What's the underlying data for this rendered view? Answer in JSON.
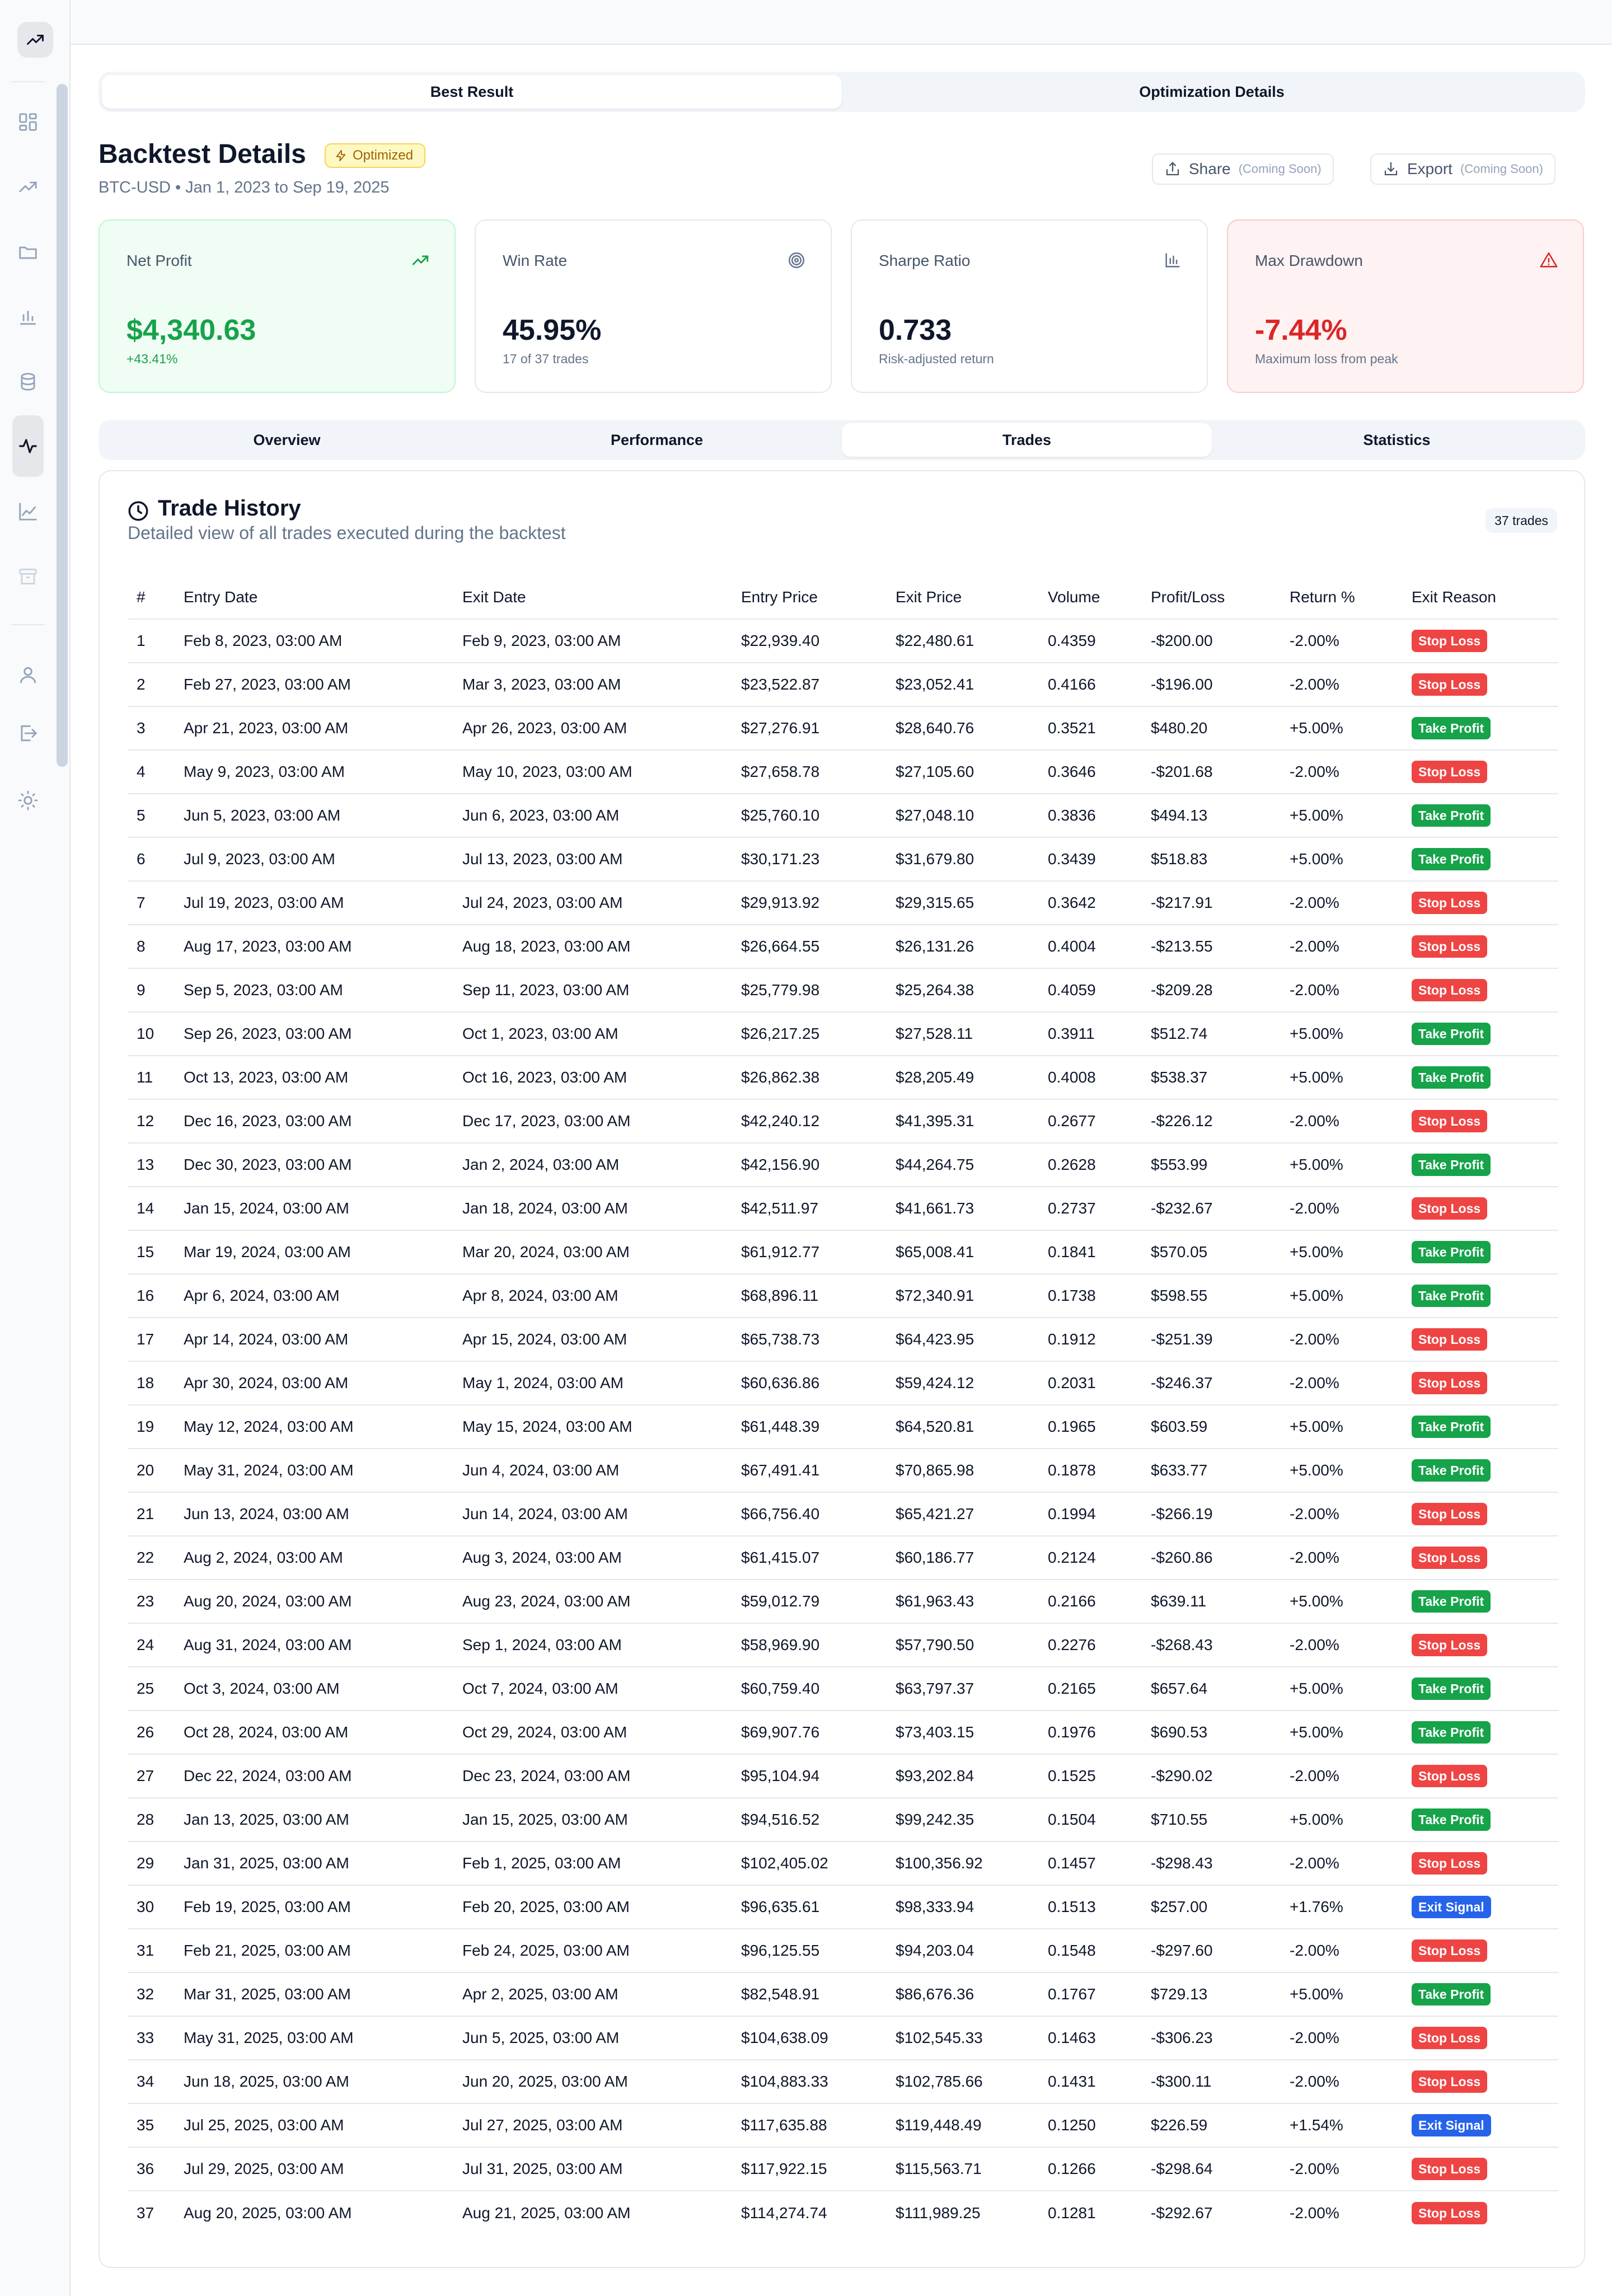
{
  "top_segments": [
    {
      "label": "Best Result",
      "active": true
    },
    {
      "label": "Optimization Details",
      "active": false
    }
  ],
  "header": {
    "title": "Backtest Details",
    "badge": "Optimized",
    "subtitle": "BTC-USD • Jan 1, 2023 to Sep 19, 2025",
    "share": {
      "label": "Share",
      "note": "(Coming Soon)"
    },
    "export": {
      "label": "Export",
      "note": "(Coming Soon)"
    }
  },
  "metrics": [
    {
      "label": "Net Profit",
      "value": "$4,340.63",
      "sub": "+43.41%",
      "icon": "trending-up-icon",
      "tone": "green"
    },
    {
      "label": "Win Rate",
      "value": "45.95%",
      "sub": "17 of 37 trades",
      "icon": "target-icon",
      "tone": "neutral"
    },
    {
      "label": "Sharpe Ratio",
      "value": "0.733",
      "sub": "Risk-adjusted return",
      "icon": "bar-chart-icon",
      "tone": "neutral"
    },
    {
      "label": "Max Drawdown",
      "value": "-7.44%",
      "sub": "Maximum loss from peak",
      "icon": "alert-triangle-icon",
      "tone": "red"
    }
  ],
  "tabs": [
    {
      "label": "Overview",
      "active": false
    },
    {
      "label": "Performance",
      "active": false
    },
    {
      "label": "Trades",
      "active": true
    },
    {
      "label": "Statistics",
      "active": false
    }
  ],
  "trade_history": {
    "title": "Trade History",
    "description": "Detailed view of all trades executed during the backtest",
    "count_badge": "37 trades",
    "columns": [
      "#",
      "Entry Date",
      "Exit Date",
      "Entry Price",
      "Exit Price",
      "Volume",
      "Profit/Loss",
      "Return %",
      "Exit Reason"
    ],
    "rows": [
      [
        "1",
        "Feb 8, 2023, 03:00 AM",
        "Feb 9, 2023, 03:00 AM",
        "$22,939.40",
        "$22,480.61",
        "0.4359",
        "-$200.00",
        "-2.00%",
        "Stop Loss"
      ],
      [
        "2",
        "Feb 27, 2023, 03:00 AM",
        "Mar 3, 2023, 03:00 AM",
        "$23,522.87",
        "$23,052.41",
        "0.4166",
        "-$196.00",
        "-2.00%",
        "Stop Loss"
      ],
      [
        "3",
        "Apr 21, 2023, 03:00 AM",
        "Apr 26, 2023, 03:00 AM",
        "$27,276.91",
        "$28,640.76",
        "0.3521",
        "$480.20",
        "+5.00%",
        "Take Profit"
      ],
      [
        "4",
        "May 9, 2023, 03:00 AM",
        "May 10, 2023, 03:00 AM",
        "$27,658.78",
        "$27,105.60",
        "0.3646",
        "-$201.68",
        "-2.00%",
        "Stop Loss"
      ],
      [
        "5",
        "Jun 5, 2023, 03:00 AM",
        "Jun 6, 2023, 03:00 AM",
        "$25,760.10",
        "$27,048.10",
        "0.3836",
        "$494.13",
        "+5.00%",
        "Take Profit"
      ],
      [
        "6",
        "Jul 9, 2023, 03:00 AM",
        "Jul 13, 2023, 03:00 AM",
        "$30,171.23",
        "$31,679.80",
        "0.3439",
        "$518.83",
        "+5.00%",
        "Take Profit"
      ],
      [
        "7",
        "Jul 19, 2023, 03:00 AM",
        "Jul 24, 2023, 03:00 AM",
        "$29,913.92",
        "$29,315.65",
        "0.3642",
        "-$217.91",
        "-2.00%",
        "Stop Loss"
      ],
      [
        "8",
        "Aug 17, 2023, 03:00 AM",
        "Aug 18, 2023, 03:00 AM",
        "$26,664.55",
        "$26,131.26",
        "0.4004",
        "-$213.55",
        "-2.00%",
        "Stop Loss"
      ],
      [
        "9",
        "Sep 5, 2023, 03:00 AM",
        "Sep 11, 2023, 03:00 AM",
        "$25,779.98",
        "$25,264.38",
        "0.4059",
        "-$209.28",
        "-2.00%",
        "Stop Loss"
      ],
      [
        "10",
        "Sep 26, 2023, 03:00 AM",
        "Oct 1, 2023, 03:00 AM",
        "$26,217.25",
        "$27,528.11",
        "0.3911",
        "$512.74",
        "+5.00%",
        "Take Profit"
      ],
      [
        "11",
        "Oct 13, 2023, 03:00 AM",
        "Oct 16, 2023, 03:00 AM",
        "$26,862.38",
        "$28,205.49",
        "0.4008",
        "$538.37",
        "+5.00%",
        "Take Profit"
      ],
      [
        "12",
        "Dec 16, 2023, 03:00 AM",
        "Dec 17, 2023, 03:00 AM",
        "$42,240.12",
        "$41,395.31",
        "0.2677",
        "-$226.12",
        "-2.00%",
        "Stop Loss"
      ],
      [
        "13",
        "Dec 30, 2023, 03:00 AM",
        "Jan 2, 2024, 03:00 AM",
        "$42,156.90",
        "$44,264.75",
        "0.2628",
        "$553.99",
        "+5.00%",
        "Take Profit"
      ],
      [
        "14",
        "Jan 15, 2024, 03:00 AM",
        "Jan 18, 2024, 03:00 AM",
        "$42,511.97",
        "$41,661.73",
        "0.2737",
        "-$232.67",
        "-2.00%",
        "Stop Loss"
      ],
      [
        "15",
        "Mar 19, 2024, 03:00 AM",
        "Mar 20, 2024, 03:00 AM",
        "$61,912.77",
        "$65,008.41",
        "0.1841",
        "$570.05",
        "+5.00%",
        "Take Profit"
      ],
      [
        "16",
        "Apr 6, 2024, 03:00 AM",
        "Apr 8, 2024, 03:00 AM",
        "$68,896.11",
        "$72,340.91",
        "0.1738",
        "$598.55",
        "+5.00%",
        "Take Profit"
      ],
      [
        "17",
        "Apr 14, 2024, 03:00 AM",
        "Apr 15, 2024, 03:00 AM",
        "$65,738.73",
        "$64,423.95",
        "0.1912",
        "-$251.39",
        "-2.00%",
        "Stop Loss"
      ],
      [
        "18",
        "Apr 30, 2024, 03:00 AM",
        "May 1, 2024, 03:00 AM",
        "$60,636.86",
        "$59,424.12",
        "0.2031",
        "-$246.37",
        "-2.00%",
        "Stop Loss"
      ],
      [
        "19",
        "May 12, 2024, 03:00 AM",
        "May 15, 2024, 03:00 AM",
        "$61,448.39",
        "$64,520.81",
        "0.1965",
        "$603.59",
        "+5.00%",
        "Take Profit"
      ],
      [
        "20",
        "May 31, 2024, 03:00 AM",
        "Jun 4, 2024, 03:00 AM",
        "$67,491.41",
        "$70,865.98",
        "0.1878",
        "$633.77",
        "+5.00%",
        "Take Profit"
      ],
      [
        "21",
        "Jun 13, 2024, 03:00 AM",
        "Jun 14, 2024, 03:00 AM",
        "$66,756.40",
        "$65,421.27",
        "0.1994",
        "-$266.19",
        "-2.00%",
        "Stop Loss"
      ],
      [
        "22",
        "Aug 2, 2024, 03:00 AM",
        "Aug 3, 2024, 03:00 AM",
        "$61,415.07",
        "$60,186.77",
        "0.2124",
        "-$260.86",
        "-2.00%",
        "Stop Loss"
      ],
      [
        "23",
        "Aug 20, 2024, 03:00 AM",
        "Aug 23, 2024, 03:00 AM",
        "$59,012.79",
        "$61,963.43",
        "0.2166",
        "$639.11",
        "+5.00%",
        "Take Profit"
      ],
      [
        "24",
        "Aug 31, 2024, 03:00 AM",
        "Sep 1, 2024, 03:00 AM",
        "$58,969.90",
        "$57,790.50",
        "0.2276",
        "-$268.43",
        "-2.00%",
        "Stop Loss"
      ],
      [
        "25",
        "Oct 3, 2024, 03:00 AM",
        "Oct 7, 2024, 03:00 AM",
        "$60,759.40",
        "$63,797.37",
        "0.2165",
        "$657.64",
        "+5.00%",
        "Take Profit"
      ],
      [
        "26",
        "Oct 28, 2024, 03:00 AM",
        "Oct 29, 2024, 03:00 AM",
        "$69,907.76",
        "$73,403.15",
        "0.1976",
        "$690.53",
        "+5.00%",
        "Take Profit"
      ],
      [
        "27",
        "Dec 22, 2024, 03:00 AM",
        "Dec 23, 2024, 03:00 AM",
        "$95,104.94",
        "$93,202.84",
        "0.1525",
        "-$290.02",
        "-2.00%",
        "Stop Loss"
      ],
      [
        "28",
        "Jan 13, 2025, 03:00 AM",
        "Jan 15, 2025, 03:00 AM",
        "$94,516.52",
        "$99,242.35",
        "0.1504",
        "$710.55",
        "+5.00%",
        "Take Profit"
      ],
      [
        "29",
        "Jan 31, 2025, 03:00 AM",
        "Feb 1, 2025, 03:00 AM",
        "$102,405.02",
        "$100,356.92",
        "0.1457",
        "-$298.43",
        "-2.00%",
        "Stop Loss"
      ],
      [
        "30",
        "Feb 19, 2025, 03:00 AM",
        "Feb 20, 2025, 03:00 AM",
        "$96,635.61",
        "$98,333.94",
        "0.1513",
        "$257.00",
        "+1.76%",
        "Exit Signal"
      ],
      [
        "31",
        "Feb 21, 2025, 03:00 AM",
        "Feb 24, 2025, 03:00 AM",
        "$96,125.55",
        "$94,203.04",
        "0.1548",
        "-$297.60",
        "-2.00%",
        "Stop Loss"
      ],
      [
        "32",
        "Mar 31, 2025, 03:00 AM",
        "Apr 2, 2025, 03:00 AM",
        "$82,548.91",
        "$86,676.36",
        "0.1767",
        "$729.13",
        "+5.00%",
        "Take Profit"
      ],
      [
        "33",
        "May 31, 2025, 03:00 AM",
        "Jun 5, 2025, 03:00 AM",
        "$104,638.09",
        "$102,545.33",
        "0.1463",
        "-$306.23",
        "-2.00%",
        "Stop Loss"
      ],
      [
        "34",
        "Jun 18, 2025, 03:00 AM",
        "Jun 20, 2025, 03:00 AM",
        "$104,883.33",
        "$102,785.66",
        "0.1431",
        "-$300.11",
        "-2.00%",
        "Stop Loss"
      ],
      [
        "35",
        "Jul 25, 2025, 03:00 AM",
        "Jul 27, 2025, 03:00 AM",
        "$117,635.88",
        "$119,448.49",
        "0.1250",
        "$226.59",
        "+1.54%",
        "Exit Signal"
      ],
      [
        "36",
        "Jul 29, 2025, 03:00 AM",
        "Jul 31, 2025, 03:00 AM",
        "$117,922.15",
        "$115,563.71",
        "0.1266",
        "-$298.64",
        "-2.00%",
        "Stop Loss"
      ],
      [
        "37",
        "Aug 20, 2025, 03:00 AM",
        "Aug 21, 2025, 03:00 AM",
        "$114,274.74",
        "$111,989.25",
        "0.1281",
        "-$292.67",
        "-2.00%",
        "Stop Loss"
      ]
    ]
  },
  "sidebar": {
    "items": [
      {
        "icon": "dashboard-icon"
      },
      {
        "icon": "trending-up-icon"
      },
      {
        "icon": "folder-icon"
      },
      {
        "icon": "bar-chart-icon"
      },
      {
        "icon": "database-icon"
      },
      {
        "icon": "activity-icon",
        "active": true
      },
      {
        "icon": "line-chart-icon"
      },
      {
        "icon": "archive-icon"
      },
      {
        "icon": "user-icon"
      },
      {
        "icon": "logout-icon"
      },
      {
        "icon": "sun-icon"
      }
    ]
  },
  "colors": {
    "profit": "#16a34a",
    "loss": "#dc2626",
    "stop_loss": "#ef4444",
    "take_profit": "#16a34a",
    "exit_signal": "#2563eb"
  }
}
